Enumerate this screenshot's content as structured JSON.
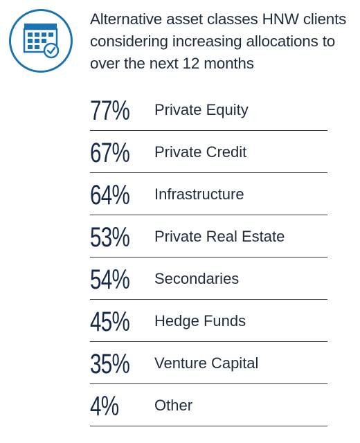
{
  "title": "Alternative asset classes HNW clients considering increasing allocations to over the next 12 months",
  "icon": "calendar-check-icon",
  "colors": {
    "accent_blue": "#1a74b3",
    "navy": "#16294a",
    "text": "#1d2b3c"
  },
  "chart_data": {
    "type": "table",
    "title": "Alternative asset classes HNW clients considering increasing allocations to over the next 12 months",
    "unit": "%",
    "rows": [
      {
        "value": 77,
        "display": "77%",
        "label": "Private Equity"
      },
      {
        "value": 67,
        "display": "67%",
        "label": "Private Credit"
      },
      {
        "value": 64,
        "display": "64%",
        "label": "Infrastructure"
      },
      {
        "value": 53,
        "display": "53%",
        "label": "Private Real Estate"
      },
      {
        "value": 54,
        "display": "54%",
        "label": "Secondaries"
      },
      {
        "value": 45,
        "display": "45%",
        "label": "Hedge Funds"
      },
      {
        "value": 35,
        "display": "35%",
        "label": "Venture Capital"
      },
      {
        "value": 4,
        "display": "4%",
        "label": "Other"
      }
    ]
  }
}
